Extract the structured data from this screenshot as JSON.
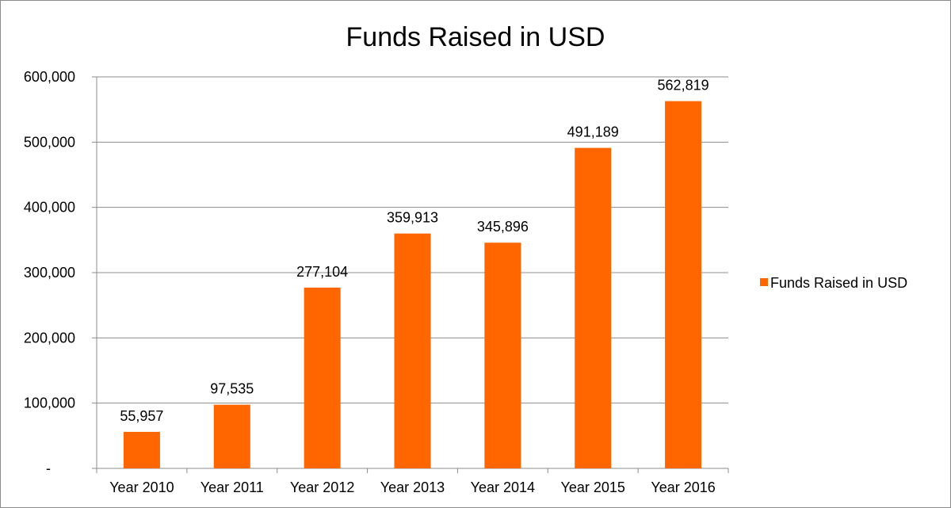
{
  "chart_data": {
    "type": "bar",
    "title": "Funds Raised in USD",
    "categories": [
      "Year 2010",
      "Year 2011",
      "Year 2012",
      "Year 2013",
      "Year 2014",
      "Year 2015",
      "Year 2016"
    ],
    "series": [
      {
        "name": "Funds Raised in USD",
        "values": [
          55957,
          97535,
          277104,
          359913,
          345896,
          491189,
          562819
        ],
        "value_labels": [
          "55,957",
          "97,535",
          "277,104",
          "359,913",
          "345,896",
          "491,189",
          "562,819"
        ],
        "color": "#ff6600"
      }
    ],
    "xlabel": "",
    "ylabel": "",
    "ylim": [
      0,
      600000
    ],
    "yticks": [
      0,
      100000,
      200000,
      300000,
      400000,
      500000,
      600000
    ],
    "ytick_labels": [
      "-",
      "100,000",
      "200,000",
      "300,000",
      "400,000",
      "500,000",
      "600,000"
    ],
    "grid": true,
    "legend_position": "right",
    "colors": {
      "bar": "#ff6600",
      "grid": "#8c8c8c",
      "axis": "#8c8c8c"
    }
  }
}
